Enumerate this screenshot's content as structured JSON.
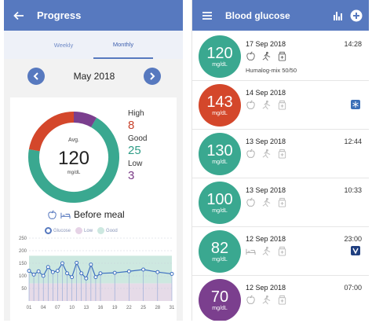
{
  "progress": {
    "title": "Progress",
    "tabs": [
      "Weekly",
      "Monthly"
    ],
    "month": "May 2018",
    "avg_label": "Avg.",
    "avg_value": "120",
    "avg_unit": "mg/dL",
    "stats": [
      {
        "label": "High",
        "value": "8",
        "color": "#c8412a"
      },
      {
        "label": "Good",
        "value": "25",
        "color": "#2f9c87"
      },
      {
        "label": "Low",
        "value": "3",
        "color": "#7a3a86"
      }
    ],
    "meal_label": "Before meal",
    "legend": [
      "Glucose",
      "Low",
      "Good"
    ],
    "colors": {
      "accent": "#5779bf",
      "high": "#d4472b",
      "good": "#3aa890",
      "low": "#7b3f8e"
    }
  },
  "chart_data": {
    "type": "line",
    "x_ticks": [
      "01",
      "04",
      "07",
      "10",
      "13",
      "16",
      "19",
      "22",
      "25",
      "28",
      "31"
    ],
    "y_ticks": [
      "50",
      "100",
      "150",
      "200",
      "250"
    ],
    "ylim": [
      0,
      250
    ],
    "xlim": [
      1,
      31
    ],
    "series": [
      {
        "name": "Glucose",
        "x": [
          1,
          2,
          3,
          4,
          5,
          6,
          7,
          8,
          9,
          10,
          11,
          12,
          13,
          14,
          15,
          16,
          19,
          22,
          25,
          28,
          31
        ],
        "y": [
          120,
          105,
          118,
          100,
          135,
          115,
          120,
          150,
          110,
          95,
          152,
          110,
          90,
          145,
          95,
          110,
          112,
          118,
          125,
          115,
          108
        ]
      }
    ],
    "good_range": [
      70,
      180
    ]
  },
  "glucose": {
    "title": "Blood glucose",
    "entries": [
      {
        "value": "120",
        "unit": "mg/dL",
        "date": "17 Sep 2018",
        "time": "14:28",
        "note": "Humalog-mix 50/50",
        "color": "#3aa890"
      },
      {
        "value": "143",
        "unit": "mg/dL",
        "date": "14 Sep 2018",
        "time": "",
        "note": "",
        "color": "#d4472b"
      },
      {
        "value": "130",
        "unit": "mg/dL",
        "date": "13 Sep 2018",
        "time": "12:44",
        "note": "",
        "color": "#3aa890"
      },
      {
        "value": "100",
        "unit": "mg/dL",
        "date": "13 Sep 2018",
        "time": "10:33",
        "note": "",
        "color": "#3aa890"
      },
      {
        "value": "82",
        "unit": "mg/dL",
        "date": "12 Sep 2018",
        "time": "23:00",
        "note": "",
        "color": "#3aa890"
      },
      {
        "value": "70",
        "unit": "mg/dL",
        "date": "12 Sep 2018",
        "time": "07:00",
        "note": "",
        "color": "#7b3f8e"
      }
    ]
  }
}
